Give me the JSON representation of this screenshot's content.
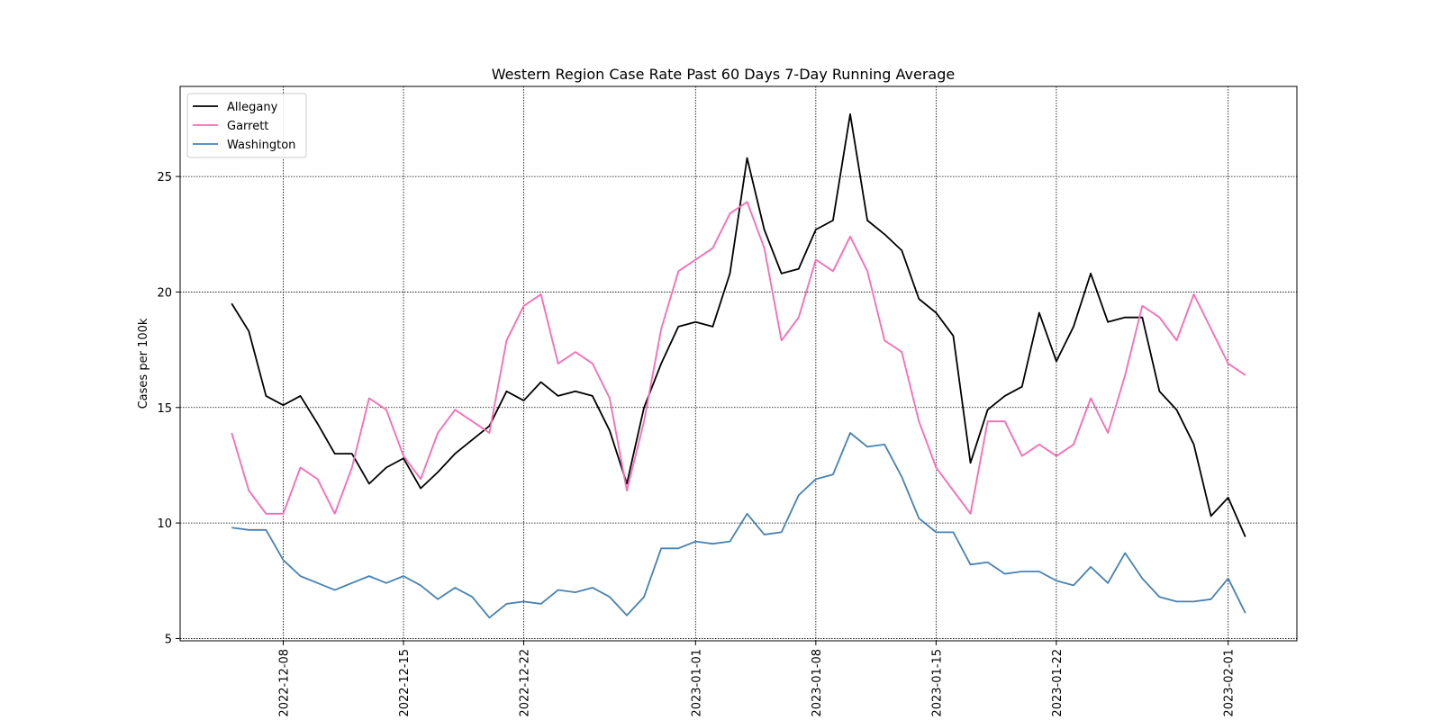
{
  "chart_data": {
    "type": "line",
    "title": "Western Region Case Rate  Past 60 Days 7-Day Running Average",
    "xlabel": "",
    "ylabel": "Cases per 100k",
    "ylim": [
      4.9,
      28.9
    ],
    "xlim": [
      "2022-12-02",
      "2023-02-05"
    ],
    "grid": true,
    "legend_position": "upper-left",
    "x_ticks": [
      "2022-12-08",
      "2022-12-15",
      "2022-12-22",
      "2023-01-01",
      "2023-01-08",
      "2023-01-15",
      "2023-01-22",
      "2023-02-01"
    ],
    "y_ticks": [
      5,
      10,
      15,
      20,
      25
    ],
    "x_start": "2022-12-05",
    "series": [
      {
        "name": "Allegany",
        "color": "#000000",
        "values": [
          19.5,
          18.3,
          15.5,
          15.1,
          15.5,
          14.3,
          13.0,
          13.0,
          11.7,
          12.4,
          12.8,
          11.5,
          12.2,
          13.0,
          13.6,
          14.2,
          15.7,
          15.3,
          16.1,
          15.5,
          15.7,
          15.5,
          14.0,
          11.7,
          15.0,
          16.9,
          18.5,
          18.7,
          18.5,
          20.8,
          25.8,
          22.7,
          20.8,
          21.0,
          22.7,
          23.1,
          27.7,
          23.1,
          22.5,
          21.8,
          19.7,
          19.1,
          18.1,
          12.6,
          14.9,
          15.5,
          15.9,
          19.1,
          17.0,
          18.5,
          20.8,
          18.7,
          18.9,
          18.9,
          15.7,
          14.9,
          13.4,
          10.3,
          11.1,
          9.4
        ]
      },
      {
        "name": "Garrett",
        "color": "#ff69b4",
        "values": [
          13.9,
          11.4,
          10.4,
          10.4,
          12.4,
          11.9,
          10.4,
          12.4,
          15.4,
          14.9,
          12.9,
          11.9,
          13.9,
          14.9,
          14.4,
          13.9,
          17.9,
          19.4,
          19.9,
          16.9,
          17.4,
          16.9,
          15.4,
          11.4,
          14.4,
          18.4,
          20.9,
          21.4,
          21.9,
          23.4,
          23.9,
          21.9,
          17.9,
          18.9,
          21.4,
          20.9,
          22.4,
          20.9,
          17.9,
          17.4,
          14.4,
          12.4,
          11.4,
          10.4,
          14.4,
          14.4,
          12.9,
          13.4,
          12.9,
          13.4,
          15.4,
          13.9,
          16.4,
          19.4,
          18.9,
          17.9,
          19.9,
          18.4,
          16.9,
          16.4
        ]
      },
      {
        "name": "Washington",
        "color": "#4682b4",
        "values": [
          9.8,
          9.7,
          9.7,
          8.4,
          7.7,
          7.4,
          7.1,
          7.4,
          7.7,
          7.4,
          7.7,
          7.3,
          6.7,
          7.2,
          6.8,
          5.9,
          6.5,
          6.6,
          6.5,
          7.1,
          7.0,
          7.2,
          6.8,
          6.0,
          6.8,
          8.9,
          8.9,
          9.2,
          9.1,
          9.2,
          10.4,
          9.5,
          9.6,
          11.2,
          11.9,
          12.1,
          13.9,
          13.3,
          13.4,
          12.0,
          10.2,
          9.6,
          9.6,
          8.2,
          8.3,
          7.8,
          7.9,
          7.9,
          7.5,
          7.3,
          8.1,
          7.4,
          8.7,
          7.6,
          6.8,
          6.6,
          6.6,
          6.7,
          7.6,
          6.1
        ]
      }
    ]
  }
}
